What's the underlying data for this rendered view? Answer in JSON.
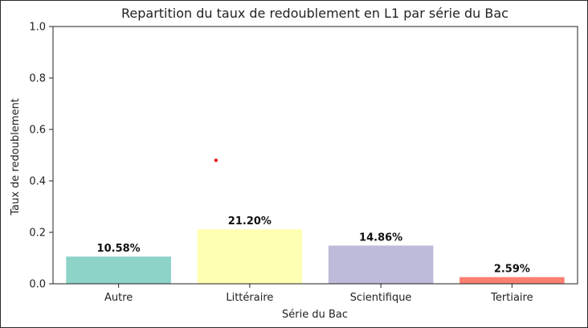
{
  "chart_data": {
    "type": "bar",
    "title": "Repartition du taux de redoublement en L1 par série du Bac",
    "xlabel": "Série du Bac",
    "ylabel": "Taux de redoublement",
    "categories": [
      "Autre",
      "Littéraire",
      "Scientifique",
      "Tertiaire"
    ],
    "values": [
      0.1058,
      0.212,
      0.1486,
      0.0259
    ],
    "data_labels": [
      "10.58%",
      "21.20%",
      "14.86%",
      "2.59%"
    ],
    "ylim": [
      0,
      1.0
    ],
    "yticks": [
      0.0,
      0.2,
      0.4,
      0.6,
      0.8,
      1.0
    ],
    "ytick_labels": [
      "0.0",
      "0.2",
      "0.4",
      "0.6",
      "0.8",
      "1.0"
    ],
    "colors": [
      "#8dd3c7",
      "#ffffb3",
      "#bebada",
      "#fb8072"
    ],
    "grid": false,
    "marker": {
      "x_category": "Littéraire",
      "y": 0.48,
      "color": "#e31a1c"
    }
  }
}
